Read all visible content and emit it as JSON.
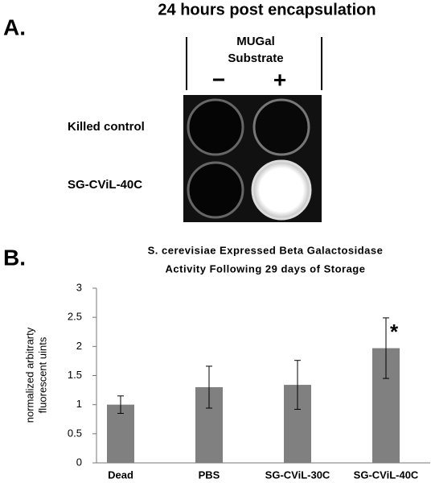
{
  "figure_title": "24 hours post encapsulation",
  "panel_a": {
    "label": "A.",
    "column_header": [
      "MUGal",
      "Substrate"
    ],
    "columns": [
      "−",
      "+"
    ],
    "rows": [
      "Killed control",
      "SG-CViL-40C"
    ]
  },
  "panel_b": {
    "label": "B."
  },
  "chart_data": {
    "type": "bar",
    "title": [
      "S. cerevisiae Expressed Beta Galactosidase",
      "Activity Following 29 days of Storage"
    ],
    "y_label": [
      "normalized arbitrarty",
      "fluorescent uints"
    ],
    "categories": [
      "Dead",
      "PBS",
      "SG-CViL-30C",
      "SG-CViL-40C"
    ],
    "values": [
      1.0,
      1.3,
      1.34,
      1.97
    ],
    "errors": [
      0.15,
      0.36,
      0.42,
      0.52
    ],
    "color": "#808080",
    "annotation": "*",
    "ylim": [
      0,
      3
    ],
    "yticks": [
      0,
      0.5,
      1,
      1.5,
      2,
      2.5,
      3
    ],
    "grid": false
  }
}
